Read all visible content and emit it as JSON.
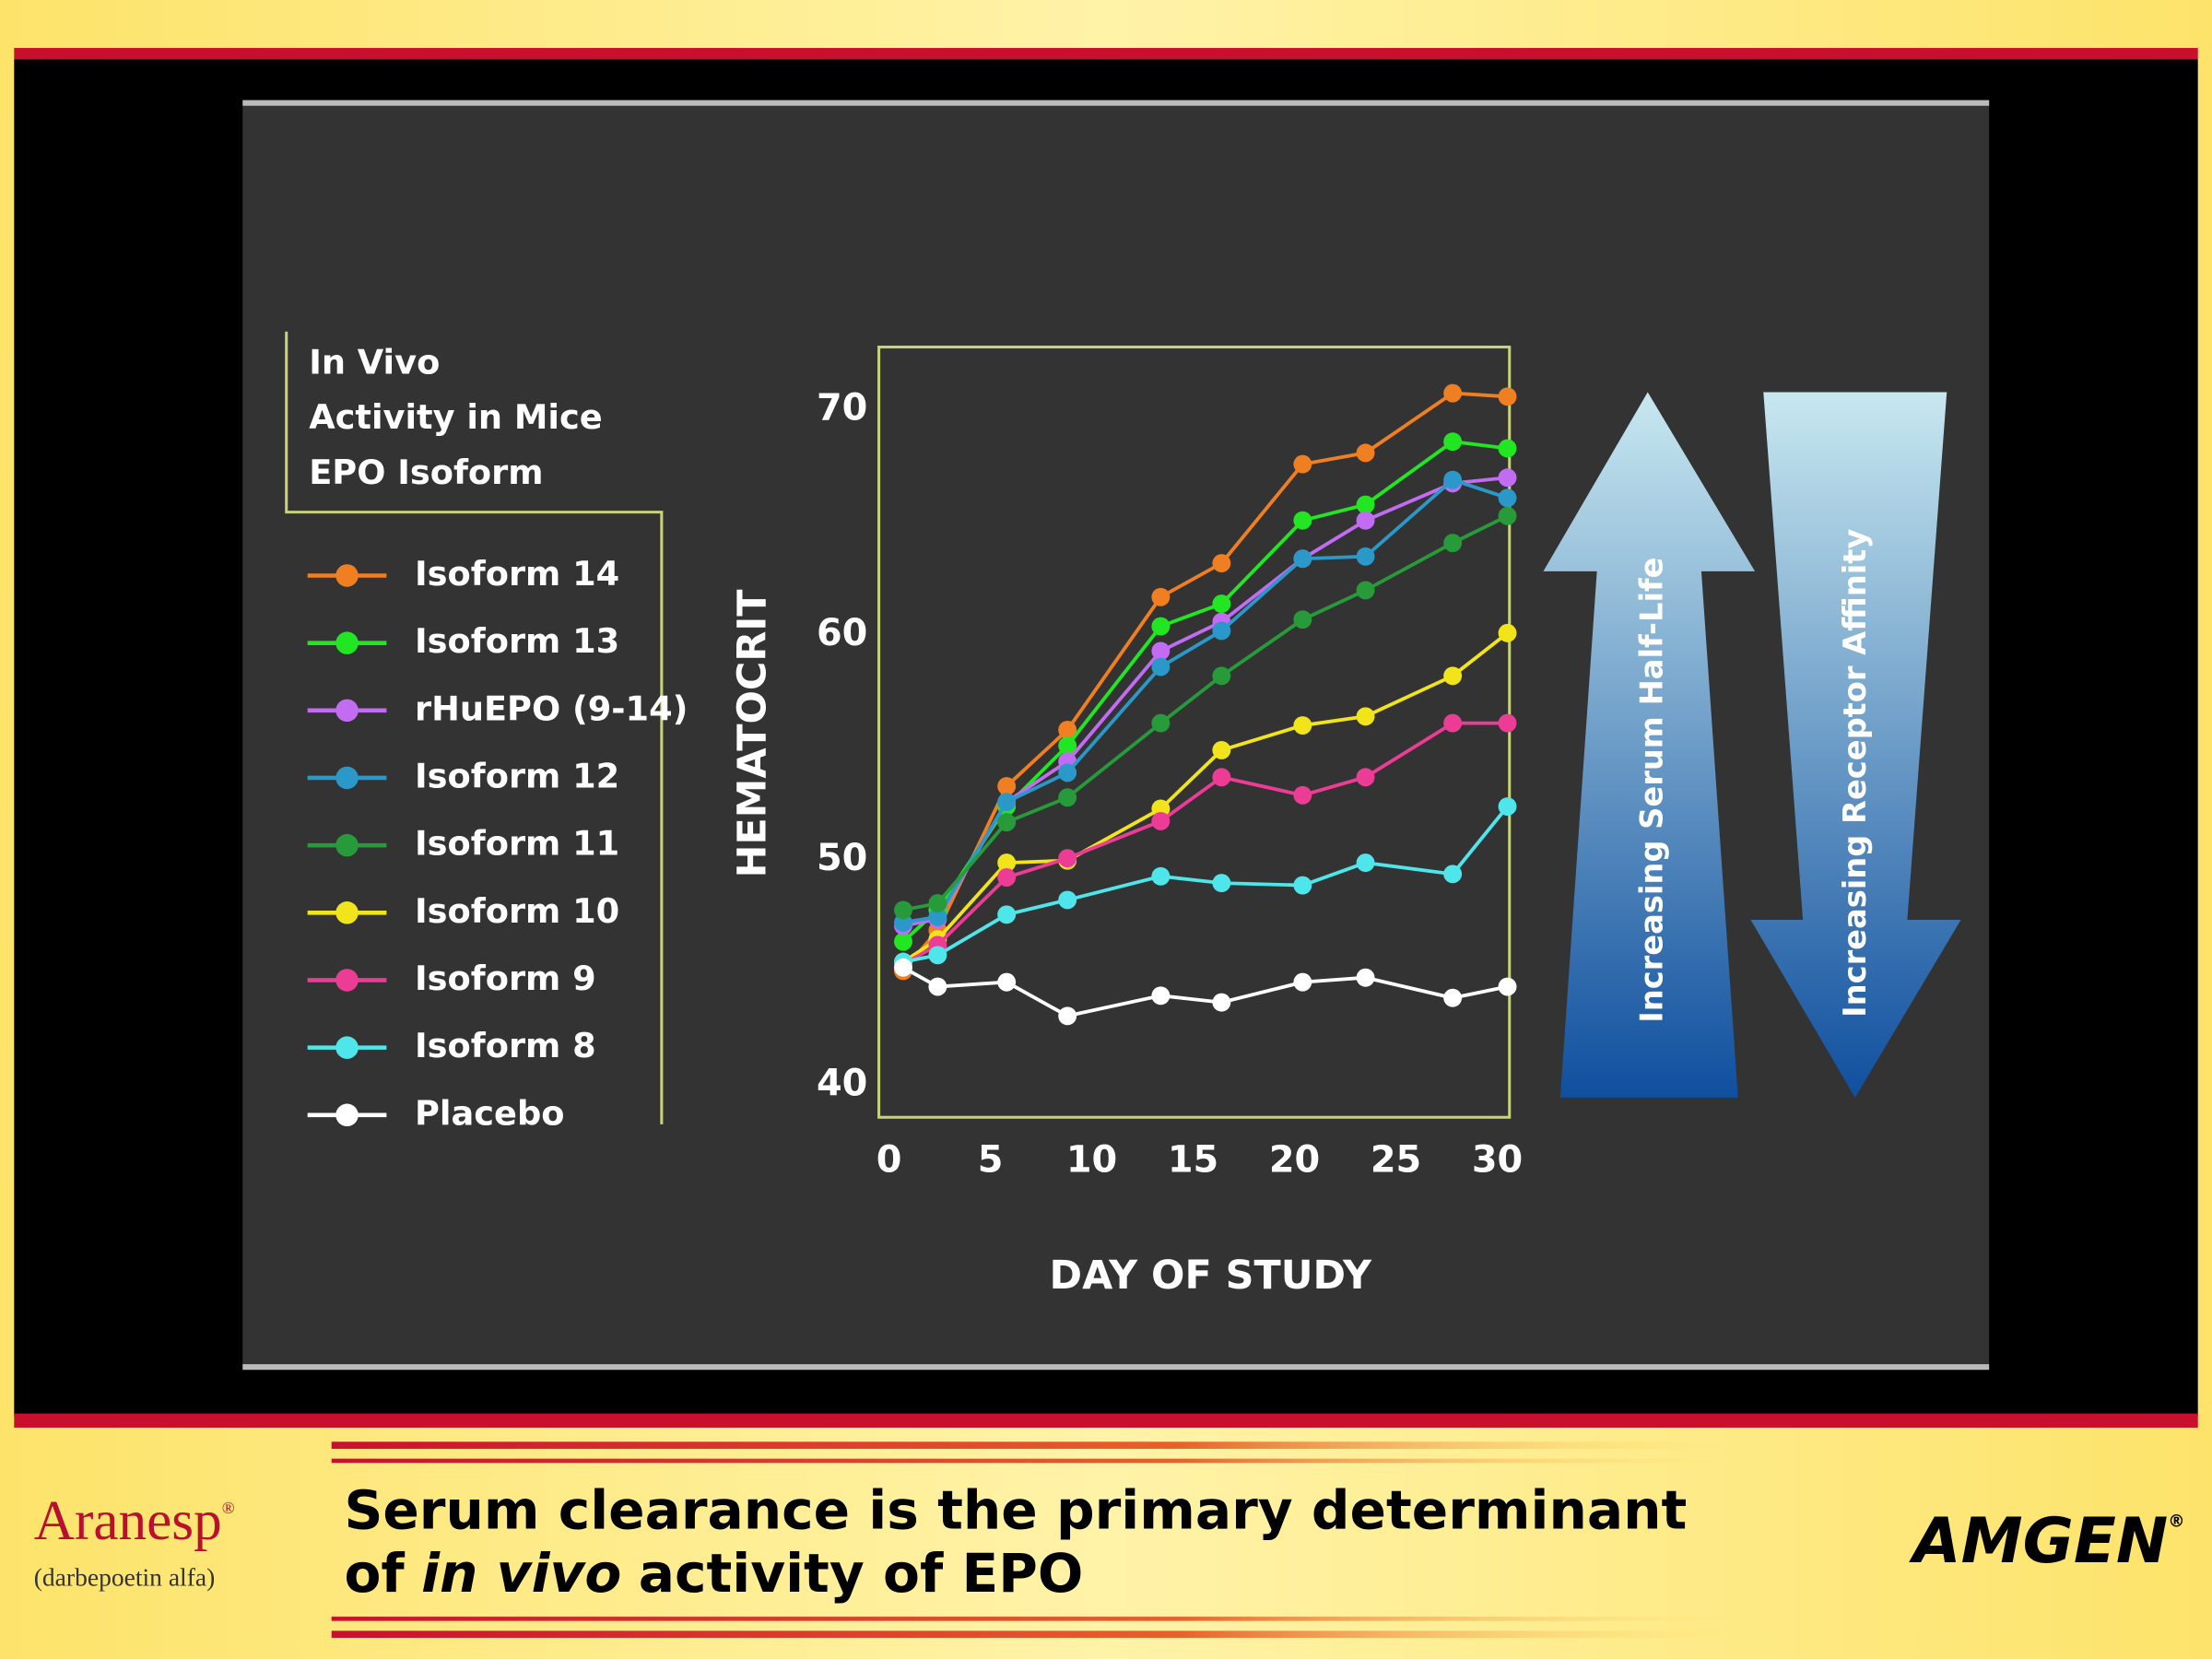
{
  "chart_data": {
    "type": "line",
    "legend_title": [
      "In Vivo",
      "Activity in Mice",
      "EPO Isoform"
    ],
    "xlabel": "DAY OF STUDY",
    "ylabel": "HEMATOCRIT",
    "x": [
      0.7,
      2.4,
      5.8,
      8.8,
      13.4,
      16.4,
      20.4,
      23.5,
      27.8,
      30.5
    ],
    "xlim": [
      -0.5,
      30.6
    ],
    "xticks": [
      0,
      5,
      10,
      15,
      20,
      25,
      30
    ],
    "ylim": [
      38.6,
      72.8
    ],
    "yticks": [
      40,
      50,
      60,
      70
    ],
    "series": [
      {
        "name": "Isoform 14",
        "color": "#f07f22",
        "values": [
          45.1,
          46.9,
          53.3,
          55.8,
          61.7,
          63.2,
          67.6,
          68.1,
          70.75,
          70.6
        ]
      },
      {
        "name": "Isoform 13",
        "color": "#22e622",
        "values": [
          46.4,
          47.8,
          52.4,
          55.1,
          60.4,
          61.4,
          65.1,
          65.8,
          68.6,
          68.3
        ]
      },
      {
        "name": "rHuEPO (9-14)",
        "color": "#c16cf2",
        "values": [
          47.1,
          47.4,
          52.6,
          54.4,
          59.3,
          60.6,
          63.4,
          65.1,
          66.75,
          67.0
        ]
      },
      {
        "name": "Isoform 12",
        "color": "#2a98c8",
        "values": [
          47.25,
          47.5,
          52.6,
          53.9,
          58.6,
          60.2,
          63.4,
          63.5,
          66.9,
          66.1
        ]
      },
      {
        "name": "Isoform 11",
        "color": "#279a3a",
        "values": [
          47.8,
          48.1,
          51.7,
          52.8,
          56.1,
          58.2,
          60.7,
          62.0,
          64.1,
          65.3
        ]
      },
      {
        "name": "Isoform 10",
        "color": "#f2e41a",
        "values": [
          45.5,
          46.5,
          49.9,
          50.0,
          52.3,
          54.9,
          56.0,
          56.4,
          58.2,
          60.1
        ]
      },
      {
        "name": "Isoform 9",
        "color": "#ec3c96",
        "values": [
          45.4,
          46.25,
          49.25,
          50.1,
          51.75,
          53.7,
          52.9,
          53.7,
          56.1,
          56.1
        ]
      },
      {
        "name": "Isoform 8",
        "color": "#4ee6ea",
        "values": [
          45.5,
          45.8,
          47.6,
          48.25,
          49.3,
          49.0,
          48.9,
          49.9,
          49.4,
          52.4
        ]
      },
      {
        "name": "Placebo",
        "color": "#ffffff",
        "values": [
          45.25,
          44.4,
          44.6,
          43.1,
          44.0,
          43.7,
          44.6,
          44.8,
          43.9,
          44.4
        ]
      }
    ],
    "arrow_up_label": "Increasing Serum Half-Life",
    "arrow_down_label": "Increasing Receptor Affinity"
  },
  "footer": {
    "brand": "Aranesp",
    "brand_mark": "®",
    "brand_sub": "(darbepoetin alfa)",
    "title_line1": "Serum clearance is the primary determinant",
    "title_line2": [
      "of",
      "in vivo",
      "activity of EPO"
    ],
    "logo": "AMGEN",
    "logo_mark": "®"
  }
}
